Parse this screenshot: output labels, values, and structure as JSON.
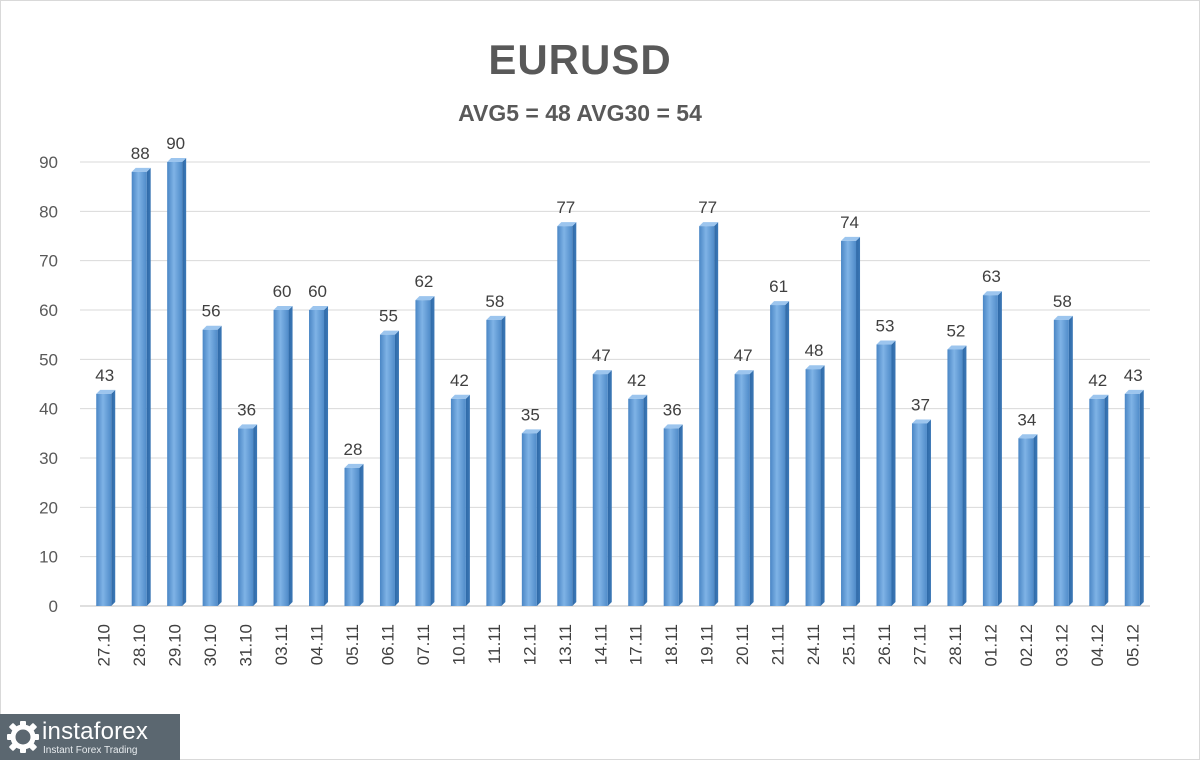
{
  "chart_data": {
    "type": "bar",
    "title": "EURUSD",
    "subtitle": "AVG5 = 48 AVG30 = 54",
    "xlabel": "",
    "ylabel": "",
    "ylim": [
      0,
      90
    ],
    "yticks": [
      0,
      10,
      20,
      30,
      40,
      50,
      60,
      70,
      80,
      90
    ],
    "grid": true,
    "legend": "none",
    "bar_color": "#5b9bd5",
    "categories": [
      "27.10",
      "28.10",
      "29.10",
      "30.10",
      "31.10",
      "03.11",
      "04.11",
      "05.11",
      "06.11",
      "07.11",
      "10.11",
      "11.11",
      "12.11",
      "13.11",
      "14.11",
      "17.11",
      "18.11",
      "19.11",
      "20.11",
      "21.11",
      "24.11",
      "25.11",
      "26.11",
      "27.11",
      "28.11",
      "01.12",
      "02.12",
      "03.12",
      "04.12",
      "05.12"
    ],
    "values": [
      43,
      88,
      90,
      56,
      36,
      60,
      60,
      28,
      55,
      62,
      42,
      58,
      35,
      77,
      47,
      42,
      36,
      77,
      47,
      61,
      48,
      74,
      53,
      37,
      52,
      63,
      34,
      58,
      42,
      43
    ]
  },
  "watermark": {
    "name": "instaforex",
    "tagline": "Instant Forex Trading",
    "icon": "gear-logo-icon"
  }
}
